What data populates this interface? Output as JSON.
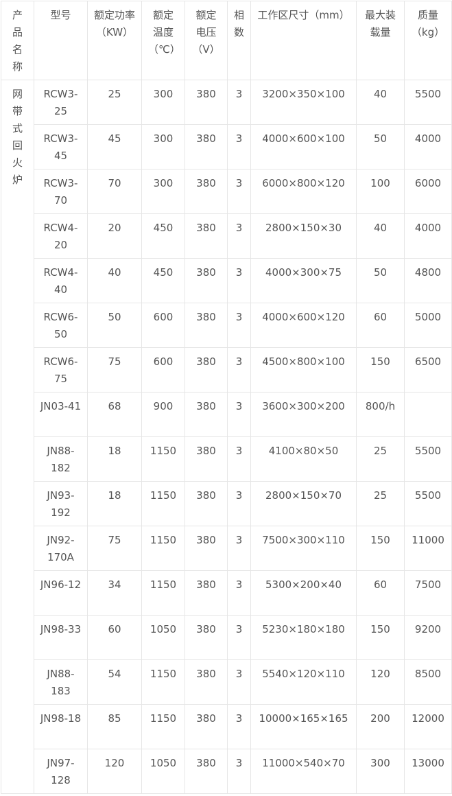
{
  "table": {
    "headers": [
      "产品名称",
      "型号",
      "额定功率（KW）",
      "额定温度（℃）",
      "额定电压（V）",
      "相数",
      "工作区尺寸（mm）",
      "最大装载量",
      "质量（kg）"
    ],
    "category": "网带式回火炉",
    "rows": [
      [
        "RCW3-25",
        "25",
        "300",
        "380",
        "3",
        "3200×350×100",
        "40",
        "5500"
      ],
      [
        "RCW3-45",
        "45",
        "300",
        "380",
        "3",
        "4000×600×100",
        "50",
        "4000"
      ],
      [
        "RCW3-70",
        "70",
        "300",
        "380",
        "3",
        "6000×800×120",
        "100",
        "6000"
      ],
      [
        "RCW4-20",
        "20",
        "450",
        "380",
        "3",
        "2800×150×30",
        "40",
        "4000"
      ],
      [
        "RCW4-40",
        "40",
        "450",
        "380",
        "3",
        "4000×300×75",
        "50",
        "4800"
      ],
      [
        "RCW6-50",
        "50",
        "600",
        "380",
        "3",
        "4000×600×120",
        "60",
        "5000"
      ],
      [
        "RCW6-75",
        "75",
        "600",
        "380",
        "3",
        "4500×800×100",
        "150",
        "6500"
      ],
      [
        "JN03-41",
        "68",
        "900",
        "380",
        "3",
        "3600×300×200",
        "800/h",
        null
      ],
      [
        "JN88-182",
        "18",
        "1150",
        "380",
        "3",
        "4100×80×50",
        "25",
        "5500"
      ],
      [
        "JN93-192",
        "18",
        "1150",
        "380",
        "3",
        "2800×150×70",
        "25",
        "5500"
      ],
      [
        "JN92-170A",
        "75",
        "1150",
        "380",
        "3",
        "7500×300×110",
        "150",
        "11000"
      ],
      [
        "JN96-12",
        "34",
        "1150",
        "380",
        "3",
        "5300×200×40",
        "60",
        "7500"
      ],
      [
        "JN98-33",
        "60",
        "1050",
        "380",
        "3",
        "5230×180×180",
        "150",
        "9200"
      ],
      [
        "JN88-183",
        "54",
        "1150",
        "380",
        "3",
        "5540×120×110",
        "120",
        "8500"
      ],
      [
        "JN98-18",
        "85",
        "1150",
        "380",
        "3",
        "10000×165×165",
        "200",
        "12000"
      ],
      [
        "JN97-128",
        "120",
        "1050",
        "380",
        "3",
        "11000×540×70",
        "300",
        "13000"
      ]
    ]
  }
}
